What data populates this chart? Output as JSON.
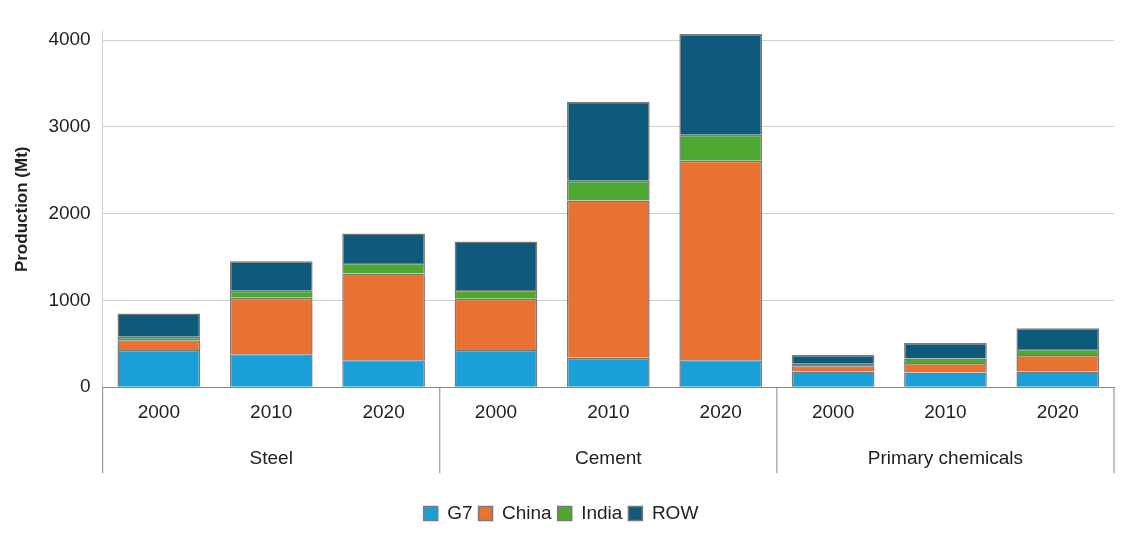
{
  "chart_data": {
    "type": "bar",
    "stacked": true,
    "ylabel": "Production (Mt)",
    "categories": [
      "2000",
      "2010",
      "2020",
      "2000",
      "2010",
      "2020",
      "2000",
      "2010",
      "2020"
    ],
    "annotations": [
      "Steel",
      "Cement",
      "Primary chemicals"
    ],
    "series": [
      {
        "name": "G7",
        "color": "#1aa0d8",
        "values": [
          430,
          380,
          310,
          430,
          340,
          310,
          180,
          170,
          180
        ]
      },
      {
        "name": "China",
        "color": "#e97132",
        "values": [
          110,
          650,
          1000,
          590,
          1810,
          2300,
          60,
          110,
          190
        ]
      },
      {
        "name": "India",
        "color": "#4ea72e",
        "values": [
          40,
          80,
          120,
          100,
          230,
          300,
          30,
          50,
          70
        ]
      },
      {
        "name": "ROW",
        "color": "#0e5a7a",
        "values": [
          270,
          340,
          340,
          560,
          910,
          1160,
          100,
          180,
          240
        ]
      }
    ],
    "ylim": [
      0,
      4100
    ],
    "yticks": [
      0,
      1000,
      2000,
      3000,
      4000
    ],
    "grid": "y",
    "legend": "bottom"
  }
}
